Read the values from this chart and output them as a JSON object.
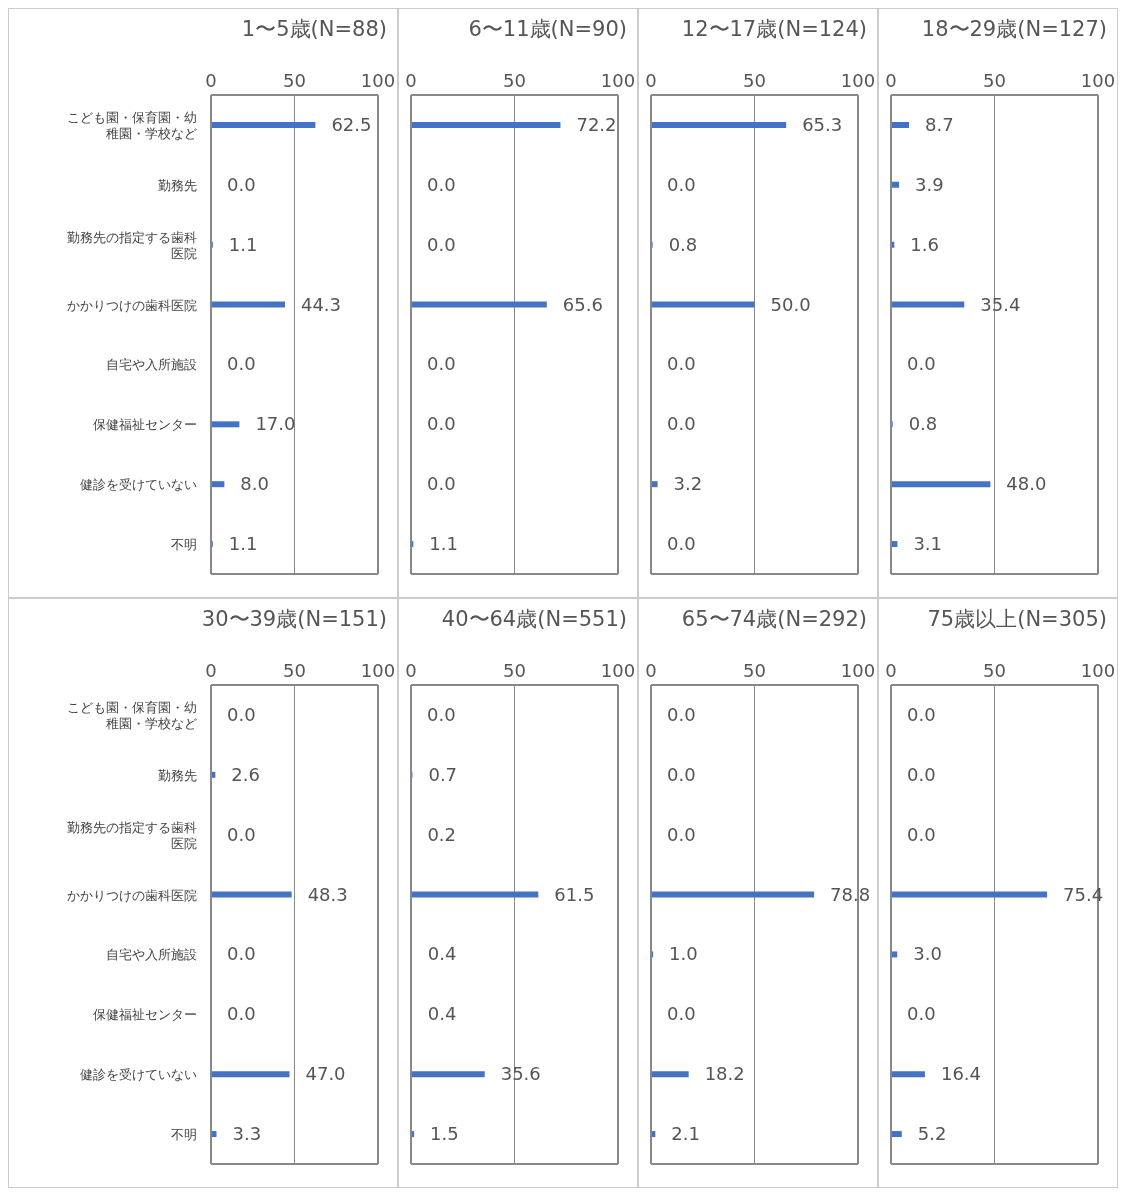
{
  "chart_data": [
    {
      "type": "bar",
      "orientation": "horizontal",
      "title": "1〜5歳(N=88)",
      "categories": [
        "こども園・保育園・幼稚園・学校など",
        "勤務先",
        "勤務先の指定する歯科医院",
        "かかりつけの歯科医院",
        "自宅や入所施設",
        "保健福祉センター",
        "健診を受けていない",
        "不明"
      ],
      "values": [
        62.5,
        0,
        1.1,
        44.3,
        0,
        17.0,
        8.0,
        1.1
      ],
      "value_labels": [
        "62.5",
        "0.0",
        "1.1",
        "44.3",
        "0.0",
        "17.0",
        "8.0",
        "1.1"
      ],
      "color": "#4472c4",
      "xlim": [
        0,
        100
      ],
      "xticks": [
        0,
        50,
        100
      ],
      "grid": "x"
    },
    {
      "type": "bar",
      "orientation": "horizontal",
      "title": "6〜11歳(N=90)",
      "categories": [
        "こども園・保育園・幼稚園・学校など",
        "勤務先",
        "勤務先の指定する歯科医院",
        "かかりつけの歯科医院",
        "自宅や入所施設",
        "保健福祉センター",
        "健診を受けていない",
        "不明"
      ],
      "values": [
        72.2,
        0,
        0,
        65.6,
        0,
        0,
        0,
        1.1
      ],
      "value_labels": [
        "72.2",
        "0.0",
        "0.0",
        "65.6",
        "0.0",
        "0.0",
        "0.0",
        "1.1"
      ],
      "color": "#4472c4",
      "xlim": [
        0,
        100
      ],
      "xticks": [
        0,
        50,
        100
      ],
      "grid": "x",
      "tick_labels": "x"
    },
    {
      "type": "bar",
      "orientation": "horizontal",
      "title": "12〜17歳(N=124)",
      "categories": [
        "こども園・保育園・幼稚園・学校など",
        "勤務先",
        "勤務先の指定する歯科医院",
        "かかりつけの歯科医院",
        "自宅や入所施設",
        "保健福祉センター",
        "健診を受けていない",
        "不明"
      ],
      "values": [
        65.3,
        0,
        0.8,
        50.0,
        0,
        0,
        3.2,
        0
      ],
      "value_labels": [
        "65.3",
        "0.0",
        "0.8",
        "50.0",
        "0.0",
        "0.0",
        "3.2",
        "0.0"
      ],
      "color": "#4472c4",
      "xlim": [
        0,
        100
      ],
      "xticks": [
        0,
        50,
        100
      ],
      "grid": "x",
      "tick_labels": "x"
    },
    {
      "type": "bar",
      "orientation": "horizontal",
      "title": "18〜29歳(N=127)",
      "categories": [
        "こども園・保育園・幼稚園・学校など",
        "勤務先",
        "勤務先の指定する歯科医院",
        "かかりつけの歯科医院",
        "自宅や入所施設",
        "保健福祉センター",
        "健診を受けていない",
        "不明"
      ],
      "values": [
        8.7,
        3.9,
        1.6,
        35.4,
        0,
        0.8,
        48.0,
        3.1
      ],
      "value_labels": [
        "8.7",
        "3.9",
        "1.6",
        "35.4",
        "0.0",
        "0.8",
        "48.0",
        "3.1"
      ],
      "color": "#4472c4",
      "xlim": [
        0,
        100
      ],
      "xticks": [
        0,
        50,
        100
      ],
      "grid": "x",
      "tick_labels": "x"
    },
    {
      "type": "bar",
      "orientation": "horizontal",
      "title": "30〜39歳(N=151)",
      "categories": [
        "こども園・保育園・幼稚園・学校など",
        "勤務先",
        "勤務先の指定する歯科医院",
        "かかりつけの歯科医院",
        "自宅や入所施設",
        "保健福祉センター",
        "健診を受けていない",
        "不明"
      ],
      "values": [
        0,
        2.6,
        0,
        48.3,
        0,
        0,
        47.0,
        3.3
      ],
      "value_labels": [
        "0.0",
        "2.6",
        "0.0",
        "48.3",
        "0.0",
        "0.0",
        "47.0",
        "3.3"
      ],
      "color": "#4472c4",
      "xlim": [
        0,
        100
      ],
      "xticks": [
        0,
        50,
        100
      ],
      "grid": "x"
    },
    {
      "type": "bar",
      "orientation": "horizontal",
      "title": "40〜64歳(N=551)",
      "categories": [
        "こども園・保育園・幼稚園・学校など",
        "勤務先",
        "勤務先の指定する歯科医院",
        "かかりつけの歯科医院",
        "自宅や入所施設",
        "保健福祉センター",
        "健診を受けていない",
        "不明"
      ],
      "values": [
        0,
        0.7,
        0.2,
        61.5,
        0.4,
        0.4,
        35.6,
        1.5
      ],
      "value_labels": [
        "0.0",
        "0.7",
        "0.2",
        "61.5",
        "0.4",
        "0.4",
        "35.6",
        "1.5"
      ],
      "color": "#4472c4",
      "xlim": [
        0,
        100
      ],
      "xticks": [
        0,
        50,
        100
      ],
      "grid": "x",
      "tick_labels": "x"
    },
    {
      "type": "bar",
      "orientation": "horizontal",
      "title": "65〜74歳(N=292)",
      "categories": [
        "こども園・保育園・幼稚園・学校など",
        "勤務先",
        "勤務先の指定する歯科医院",
        "かかりつけの歯科医院",
        "自宅や入所施設",
        "保健福祉センター",
        "健診を受けていない",
        "不明"
      ],
      "values": [
        0,
        0,
        0,
        78.8,
        1.0,
        0,
        18.2,
        2.1
      ],
      "value_labels": [
        "0.0",
        "0.0",
        "0.0",
        "78.8",
        "1.0",
        "0.0",
        "18.2",
        "2.1"
      ],
      "color": "#4472c4",
      "xlim": [
        0,
        100
      ],
      "xticks": [
        0,
        50,
        100
      ],
      "grid": "x",
      "tick_labels": "x"
    },
    {
      "type": "bar",
      "orientation": "horizontal",
      "title": "75歳以上(N=305)",
      "categories": [
        "こども園・保育園・幼稚園・学校など",
        "勤務先",
        "勤務先の指定する歯科医院",
        "かかりつけの歯科医院",
        "自宅や入所施設",
        "保健福祉センター",
        "健診を受けていない",
        "不明"
      ],
      "values": [
        0,
        0,
        0,
        75.4,
        3.0,
        0,
        16.4,
        5.2
      ],
      "value_labels": [
        "0.0",
        "0.0",
        "0.0",
        "75.4",
        "3.0",
        "0.0",
        "16.4",
        "5.2"
      ],
      "color": "#4472c4",
      "xlim": [
        0,
        100
      ],
      "xticks": [
        0,
        50,
        100
      ],
      "grid": "x",
      "tick_labels": "x"
    }
  ]
}
